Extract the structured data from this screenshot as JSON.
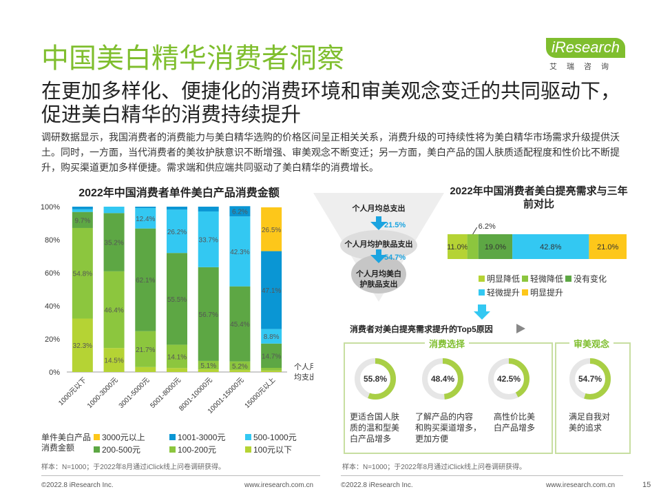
{
  "header": {
    "title": "中国美白精华消费者洞察",
    "subtitle": "在更加多样化、便捷化的消费环境和审美观念变迁的共同驱动下，促进美白精华的消费持续提升",
    "intro": "调研数据显示，我国消费者的消费能力与美白精华选购的价格区间呈正相关关系，消费升级的可持续性将为美白精华市场需求升级提供沃土。同时，一方面，当代消费者的美妆护肤意识不断增强、审美观念不断变迁；另一方面，美白产品的国人肤质适配程度和性价比不断提升，购买渠道更加多样便捷。需求端和供应端共同驱动了美白精华的消费增长。",
    "logo_en": "iResearch",
    "logo_cn": "艾瑞咨询"
  },
  "colors": {
    "accent": "#7fbe2e",
    "s1": "#b5d334",
    "s2": "#8cc63e",
    "s3": "#5da744",
    "s4": "#33c8f2",
    "s5": "#0a96d4",
    "s6": "#fdc71a"
  },
  "chart_data": [
    {
      "type": "bar",
      "stacked": true,
      "title": "2022年中国消费者单件美白产品消费金额",
      "xlabel": "个人月均支出",
      "ylim": [
        0,
        100
      ],
      "yticks": [
        "0%",
        "20%",
        "40%",
        "60%",
        "80%",
        "100%"
      ],
      "categories": [
        "1000元以下",
        "1000-3000元",
        "3001-5000元",
        "5001-8000元",
        "8001-10000元",
        "10001-15000元",
        "15000元以上"
      ],
      "legend_title": "单件美白产品消费金额",
      "series": [
        {
          "name": "100元以下",
          "color": "#b5d334",
          "values": [
            32.3,
            14.5,
            3.0,
            2.4,
            1.6,
            1.2,
            0.9
          ],
          "labels": [
            "32.3%",
            "14.5%",
            "",
            "",
            "",
            "",
            ""
          ]
        },
        {
          "name": "100-200元",
          "color": "#8cc63e",
          "values": [
            54.8,
            46.4,
            21.7,
            14.1,
            5.1,
            5.2,
            1.6
          ],
          "labels": [
            "54.8%",
            "46.4%",
            "21.7%",
            "14.1%",
            "5.1%",
            "5.2%",
            ""
          ]
        },
        {
          "name": "200-500元",
          "color": "#5da744",
          "values": [
            9.7,
            35.2,
            62.1,
            55.5,
            56.7,
            45.4,
            14.7
          ],
          "labels": [
            "9.7%",
            "35.2%",
            "62.1%",
            "55.5%",
            "56.7%",
            "45.4%",
            "14.7%"
          ]
        },
        {
          "name": "500-1000元",
          "color": "#33c8f2",
          "values": [
            1.6,
            3.9,
            12.4,
            26.2,
            33.7,
            42.3,
            8.8
          ],
          "labels": [
            "",
            "",
            "12.4%",
            "26.2%",
            "33.7%",
            "42.3%",
            "8.8%"
          ]
        },
        {
          "name": "1001-3000元",
          "color": "#0a96d4",
          "values": [
            1.6,
            0.0,
            0.8,
            1.8,
            2.9,
            6.2,
            47.1
          ],
          "labels": [
            "",
            "",
            "",
            "",
            "",
            "6.2%",
            "47.1%"
          ]
        },
        {
          "name": "3000元以上",
          "color": "#fdc71a",
          "values": [
            0,
            0,
            0,
            0,
            0,
            0,
            26.5
          ],
          "labels": [
            "",
            "",
            "",
            "",
            "",
            "",
            "26.5%"
          ]
        }
      ],
      "legend_order": [
        "3000元以上",
        "1001-3000元",
        "500-1000元",
        "200-500元",
        "100-200元",
        "100元以下"
      ]
    },
    {
      "type": "bar",
      "stacked": true,
      "orientation": "horizontal",
      "title": "2022年中国消费者美白提亮需求与三年前对比",
      "series": [
        {
          "name": "明显降低",
          "color": "#b5d334",
          "value": 11.0,
          "label": "11.0%"
        },
        {
          "name": "轻微降低",
          "color": "#8cc63e",
          "value": 6.2,
          "label": "6.2%"
        },
        {
          "name": "没有变化",
          "color": "#5da744",
          "value": 19.0,
          "label": "19.0%"
        },
        {
          "name": "轻微提升",
          "color": "#33c8f2",
          "value": 42.8,
          "label": "42.8%"
        },
        {
          "name": "明显提升",
          "color": "#fdc71a",
          "value": 21.0,
          "label": "21.0%"
        }
      ]
    }
  ],
  "funnel": {
    "levels": [
      "个人月均总支出",
      "个人月均护肤品支出",
      "个人月均美白护肤品支出"
    ],
    "ratios": [
      "21.5%",
      "54.7%"
    ]
  },
  "top5": {
    "title": "消费者对美白提亮需求提升的Top5原因",
    "group1_label": "消费选择",
    "group2_label": "审美观念",
    "reasons": [
      {
        "pct": 55.8,
        "pct_label": "55.8%",
        "lines": [
          "更适合国人肤",
          "质的温和型美",
          "白产品增多"
        ]
      },
      {
        "pct": 48.4,
        "pct_label": "48.4%",
        "lines": [
          "了解产品的内容",
          "和购买渠道增多，",
          "更加方便"
        ]
      },
      {
        "pct": 42.5,
        "pct_label": "42.5%",
        "lines": [
          "高性价比美",
          "白产品增多"
        ]
      },
      {
        "pct": 54.7,
        "pct_label": "54.7%",
        "lines": [
          "满足自我对",
          "美的追求"
        ]
      }
    ]
  },
  "footer": {
    "sample_note": "样本：N=1000；于2022年8月通过iClick线上问卷调研获得。",
    "copyright": "©2022.8 iResearch Inc.",
    "website": "www.iresearch.com.cn",
    "page": "15"
  }
}
